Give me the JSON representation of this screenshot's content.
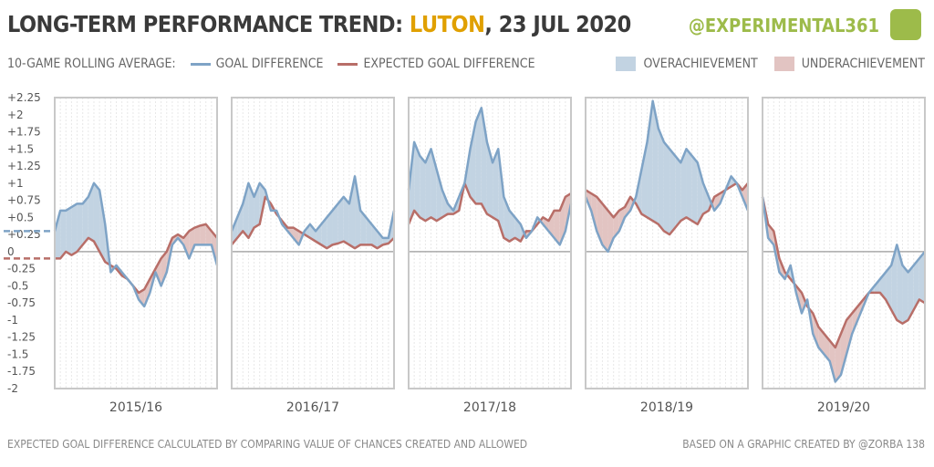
{
  "header": {
    "title_prefix": "LONG-TERM PERFORMANCE TREND: ",
    "team": "LUTON",
    "title_suffix": ", 23 JUL 2020",
    "brand": "@EXPERIMENTAL361"
  },
  "legend": {
    "label": "10-GAME ROLLING AVERAGE:",
    "gd": "GOAL DIFFERENCE",
    "xgd": "EXPECTED GOAL DIFFERENCE",
    "over": "OVERACHIEVEMENT",
    "under": "UNDERACHIEVEMENT"
  },
  "footer": {
    "left": "EXPECTED GOAL DIFFERENCE CALCULATED BY COMPARING VALUE OF CHANCES CREATED AND ALLOWED",
    "right": "BASED ON A GRAPHIC CREATED BY @ZORBA 138"
  },
  "colors": {
    "gd": "#7ea3c6",
    "xgd": "#b86e68",
    "over": "#c2d3e2",
    "under": "#e2c4c2",
    "title": "#3a3a3a",
    "team": "#e0a000",
    "brand": "#9dbb4a"
  },
  "chart_data": {
    "type": "line",
    "ylim": [
      -2,
      2.25
    ],
    "yticks": [
      "+2.25",
      "+2",
      "+1.75",
      "+1.5",
      "+1.25",
      "+1",
      "+0.75",
      "+0.5",
      "+0.25",
      "0",
      "-0.25",
      "-0.5",
      "-0.75",
      "-1",
      "-1.25",
      "-1.5",
      "-1.75",
      "-2"
    ],
    "ytick_values": [
      2.25,
      2,
      1.75,
      1.5,
      1.25,
      1,
      0.75,
      0.5,
      0.25,
      0,
      -0.25,
      -0.5,
      -0.75,
      -1,
      -1.25,
      -1.5,
      -1.75,
      -2
    ],
    "prior_season_gd": 0.3,
    "prior_season_xgd": -0.1,
    "seasons": [
      {
        "name": "2015/16",
        "gd": [
          0.3,
          0.6,
          0.6,
          0.65,
          0.7,
          0.7,
          0.8,
          1.0,
          0.9,
          0.4,
          -0.3,
          -0.2,
          -0.3,
          -0.4,
          -0.5,
          -0.7,
          -0.8,
          -0.6,
          -0.3,
          -0.5,
          -0.3,
          0.1,
          0.2,
          0.1,
          -0.1,
          0.1,
          0.1,
          0.1,
          0.1,
          -0.2
        ],
        "xgd": [
          -0.1,
          -0.1,
          0.0,
          -0.05,
          0.0,
          0.1,
          0.2,
          0.15,
          0.0,
          -0.15,
          -0.2,
          -0.25,
          -0.35,
          -0.4,
          -0.5,
          -0.6,
          -0.55,
          -0.4,
          -0.25,
          -0.1,
          0.0,
          0.2,
          0.25,
          0.2,
          0.3,
          0.35,
          0.38,
          0.4,
          0.3,
          0.2
        ]
      },
      {
        "name": "2016/17",
        "gd": [
          0.3,
          0.5,
          0.7,
          1.0,
          0.8,
          1.0,
          0.9,
          0.6,
          0.6,
          0.4,
          0.3,
          0.2,
          0.1,
          0.3,
          0.4,
          0.3,
          0.4,
          0.5,
          0.6,
          0.7,
          0.8,
          0.7,
          1.1,
          0.6,
          0.5,
          0.4,
          0.3,
          0.2,
          0.2,
          0.6
        ],
        "xgd": [
          0.1,
          0.2,
          0.3,
          0.2,
          0.35,
          0.4,
          0.8,
          0.7,
          0.55,
          0.45,
          0.35,
          0.35,
          0.3,
          0.25,
          0.2,
          0.15,
          0.1,
          0.05,
          0.1,
          0.12,
          0.15,
          0.1,
          0.05,
          0.1,
          0.1,
          0.1,
          0.05,
          0.1,
          0.12,
          0.2
        ]
      },
      {
        "name": "2017/18",
        "gd": [
          0.9,
          1.6,
          1.4,
          1.3,
          1.5,
          1.2,
          0.9,
          0.7,
          0.6,
          0.8,
          1.0,
          1.5,
          1.9,
          2.1,
          1.6,
          1.3,
          1.5,
          0.8,
          0.6,
          0.5,
          0.4,
          0.2,
          0.3,
          0.5,
          0.4,
          0.3,
          0.2,
          0.1,
          0.3,
          0.7
        ],
        "xgd": [
          0.4,
          0.6,
          0.5,
          0.45,
          0.5,
          0.45,
          0.5,
          0.55,
          0.55,
          0.6,
          1.0,
          0.8,
          0.7,
          0.7,
          0.55,
          0.5,
          0.45,
          0.2,
          0.15,
          0.2,
          0.15,
          0.3,
          0.3,
          0.4,
          0.5,
          0.45,
          0.6,
          0.6,
          0.8,
          0.85
        ]
      },
      {
        "name": "2018/19",
        "gd": [
          0.8,
          0.6,
          0.3,
          0.1,
          0.0,
          0.2,
          0.3,
          0.5,
          0.6,
          0.8,
          1.2,
          1.6,
          2.2,
          1.8,
          1.6,
          1.5,
          1.4,
          1.3,
          1.5,
          1.4,
          1.3,
          1.0,
          0.8,
          0.6,
          0.7,
          0.9,
          1.1,
          1.0,
          0.8,
          0.6
        ],
        "xgd": [
          0.9,
          0.85,
          0.8,
          0.7,
          0.6,
          0.5,
          0.6,
          0.65,
          0.8,
          0.7,
          0.55,
          0.5,
          0.45,
          0.4,
          0.3,
          0.25,
          0.35,
          0.45,
          0.5,
          0.45,
          0.4,
          0.55,
          0.6,
          0.8,
          0.85,
          0.9,
          0.95,
          1.0,
          0.9,
          1.0
        ]
      },
      {
        "name": "2019/20",
        "gd": [
          0.8,
          0.2,
          0.1,
          -0.3,
          -0.4,
          -0.2,
          -0.6,
          -0.9,
          -0.7,
          -1.2,
          -1.4,
          -1.5,
          -1.6,
          -1.9,
          -1.8,
          -1.5,
          -1.2,
          -1.0,
          -0.8,
          -0.6,
          -0.5,
          -0.4,
          -0.3,
          -0.2,
          0.1,
          -0.2,
          -0.3,
          -0.2,
          -0.1,
          0.0
        ],
        "xgd": [
          0.8,
          0.4,
          0.3,
          -0.1,
          -0.3,
          -0.4,
          -0.5,
          -0.6,
          -0.8,
          -0.9,
          -1.1,
          -1.2,
          -1.3,
          -1.4,
          -1.2,
          -1.0,
          -0.9,
          -0.8,
          -0.7,
          -0.6,
          -0.6,
          -0.6,
          -0.7,
          -0.85,
          -1.0,
          -1.05,
          -1.0,
          -0.85,
          -0.7,
          -0.75
        ]
      }
    ]
  }
}
